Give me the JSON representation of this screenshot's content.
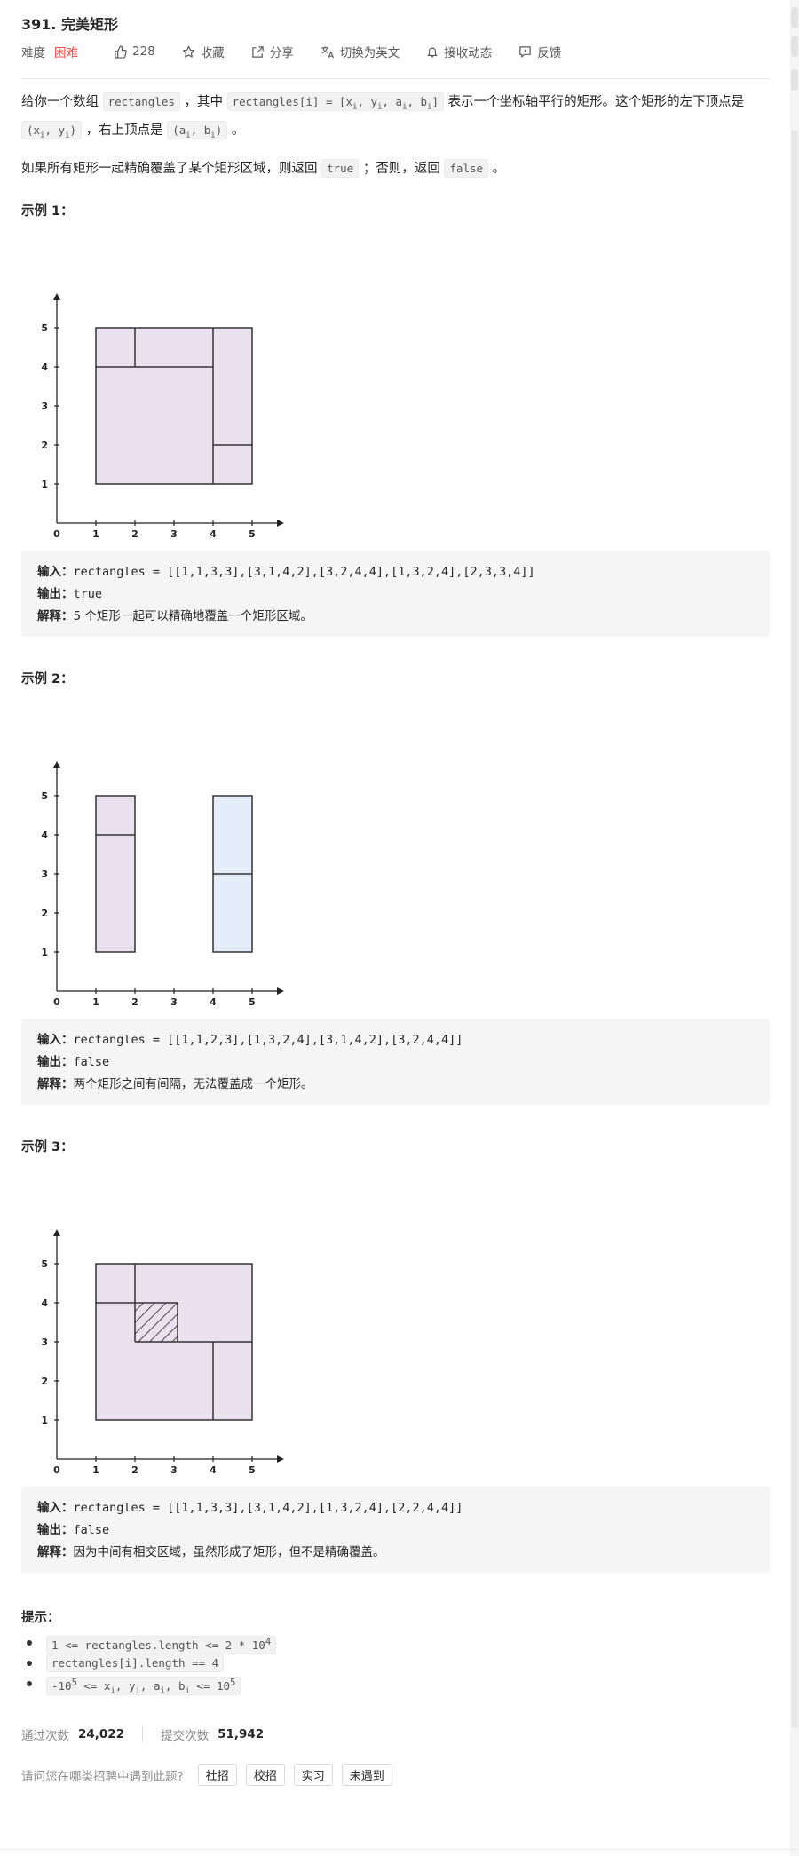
{
  "problem": {
    "title": "391. 完美矩形",
    "difficulty_label": "难度",
    "difficulty": "困难",
    "likes": "228",
    "favorite": "收藏",
    "share": "分享",
    "switch_lang": "切换为英文",
    "subscribe": "接收动态",
    "feedback": "反馈"
  },
  "description": {
    "p1_a": "给你一个数组 ",
    "p1_code1": "rectangles",
    "p1_b": " ，其中 ",
    "p1_code2": "rectangles[i] = [x",
    "p1_c": "表示一个坐标轴平行的矩形。这个矩形的左下顶点是 ",
    "p1_d": " ，右上顶点是 ",
    "p1_e": " 。",
    "p2_a": "如果所有矩形一起精确覆盖了某个矩形区域，则返回 ",
    "p2_true": "true",
    "p2_b": " ；否则，返回 ",
    "p2_false": "false",
    "p2_c": " 。"
  },
  "examples": [
    {
      "title": "示例 1：",
      "input_label": "输入：",
      "input": "rectangles = [[1,1,3,3],[3,1,4,2],[3,2,4,4],[1,3,2,4],[2,3,3,4]]",
      "output_label": "输出：",
      "output": "true",
      "explain_label": "解释：",
      "explain": "5 个矩形一起可以精确地覆盖一个矩形区域。"
    },
    {
      "title": "示例 2：",
      "input_label": "输入：",
      "input": "rectangles = [[1,1,2,3],[1,3,2,4],[3,1,4,2],[3,2,4,4]]",
      "output_label": "输出：",
      "output": "false",
      "explain_label": "解释：",
      "explain": "两个矩形之间有间隔，无法覆盖成一个矩形。"
    },
    {
      "title": "示例 3：",
      "input_label": "输入：",
      "input": "rectangles = [[1,1,3,3],[3,1,4,2],[1,3,2,4],[2,2,4,4]]",
      "output_label": "输出：",
      "output": "false",
      "explain_label": "解释：",
      "explain": "因为中间有相交区域，虽然形成了矩形，但不是精确覆盖。"
    }
  ],
  "axis_ticks": [
    "0",
    "1",
    "2",
    "3",
    "4",
    "5"
  ],
  "hints": {
    "title": "提示：",
    "h1_a": "1 <= rectangles.length <= 2 * 10",
    "h1_sup": "4",
    "h2": "rectangles[i].length == 4",
    "h3_a": "-10",
    "h3_sup1": "5",
    "h3_b": " <= x",
    "h3_c": ", y",
    "h3_d": ", a",
    "h3_e": ", b",
    "h3_f": " <= 10",
    "h3_sup2": "5",
    "sub_i": "i"
  },
  "stats": {
    "accepted_label": "通过次数",
    "accepted": "24,022",
    "submitted_label": "提交次数",
    "submitted": "51,942"
  },
  "survey": {
    "question": "请问您在哪类招聘中遇到此题?",
    "options": [
      "社招",
      "校招",
      "实习",
      "未遇到"
    ]
  },
  "colors": {
    "difficulty_hard": "#ef4743",
    "rect_fill_purple": "#e9e1ee",
    "rect_fill_blue": "#e3edfb"
  }
}
